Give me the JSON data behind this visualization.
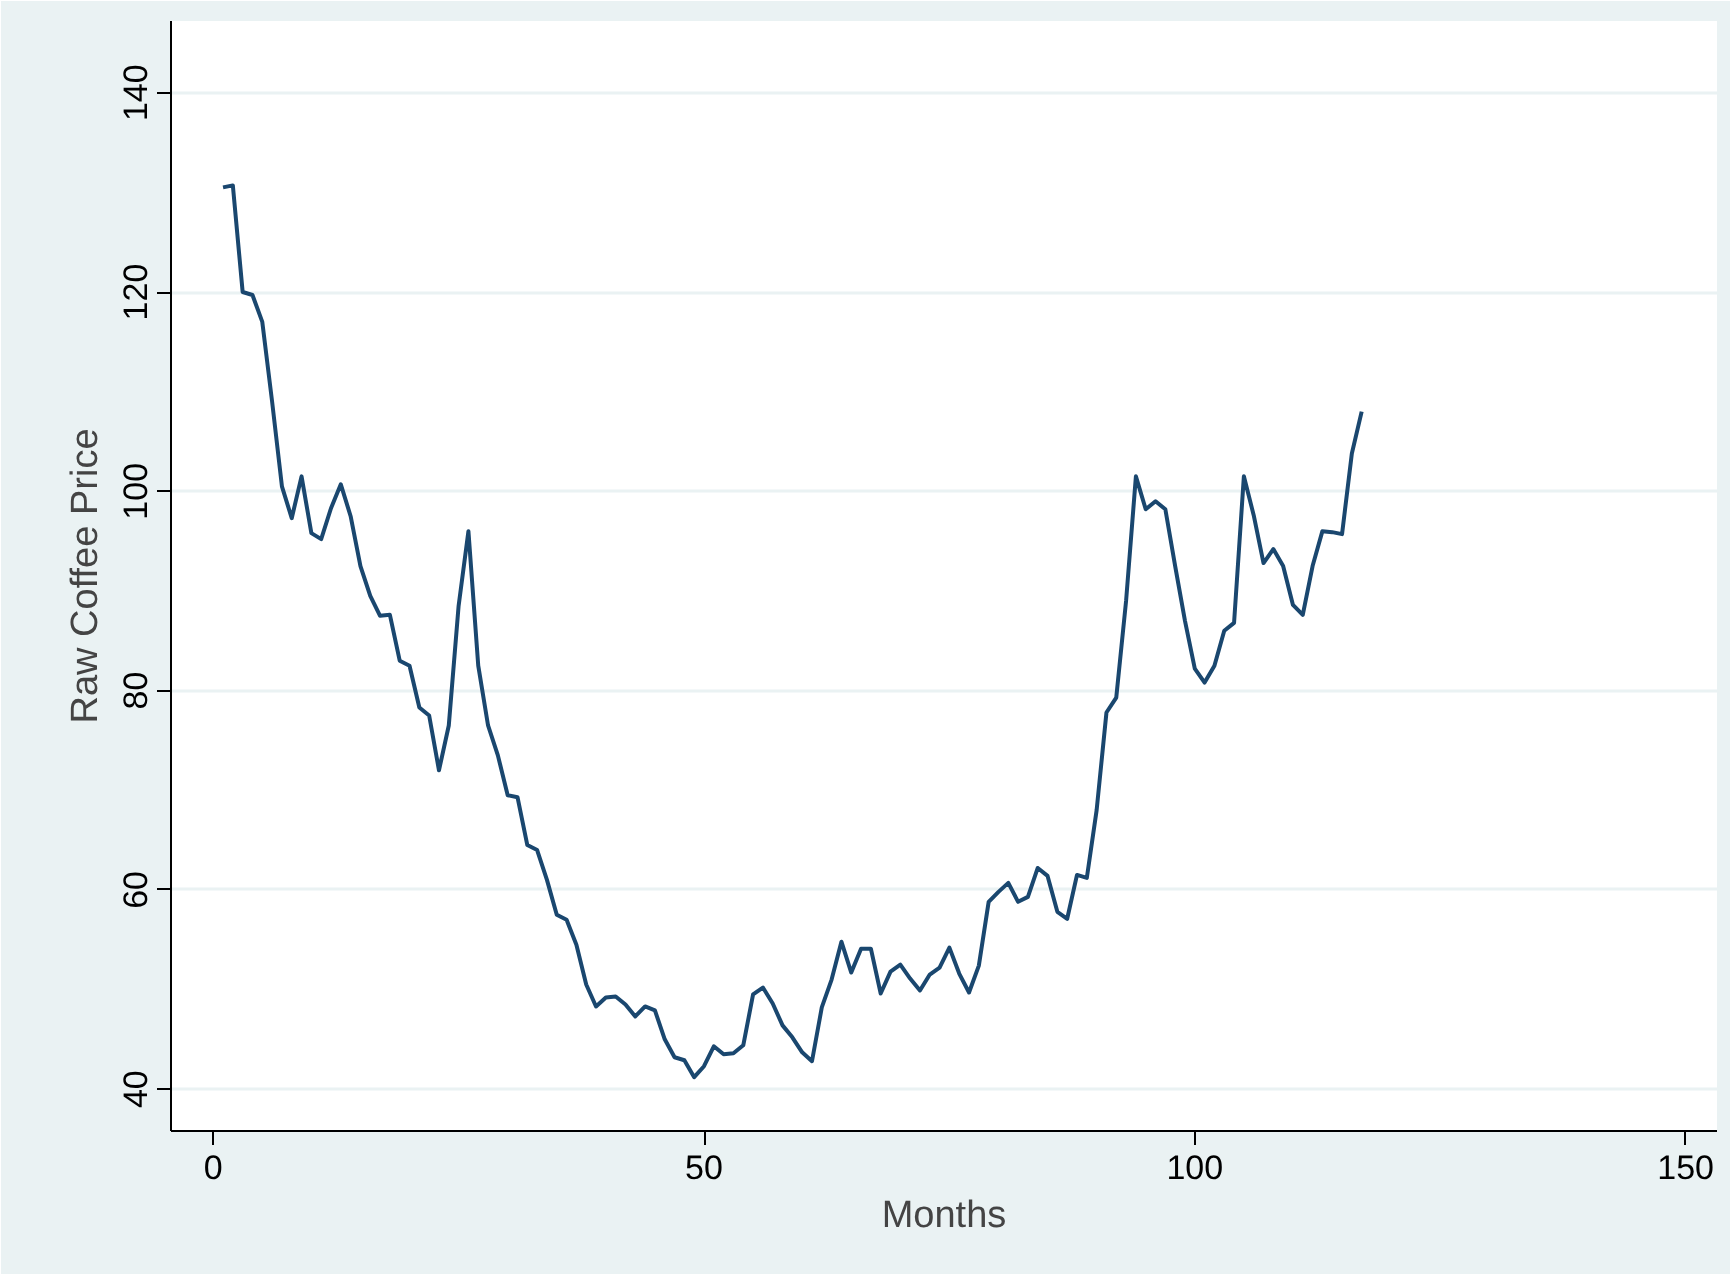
{
  "chart_data": {
    "type": "line",
    "xlabel": "Months",
    "ylabel": "Raw Coffee Price",
    "x": [
      1,
      2,
      3,
      4,
      5,
      6,
      7,
      8,
      9,
      10,
      11,
      12,
      13,
      14,
      15,
      16,
      17,
      18,
      19,
      20,
      21,
      22,
      23,
      24,
      25,
      26,
      27,
      28,
      29,
      30,
      31,
      32,
      33,
      34,
      35,
      36,
      37,
      38,
      39,
      40,
      41,
      42,
      43,
      44,
      45,
      46,
      47,
      48,
      49,
      50,
      51,
      52,
      53,
      54,
      55,
      56,
      57,
      58,
      59,
      60,
      61,
      62,
      63,
      64,
      65,
      66,
      67,
      68,
      69,
      70,
      71,
      72,
      73,
      74,
      75,
      76,
      77,
      78,
      79,
      80,
      81,
      82,
      83,
      84,
      85,
      86,
      87,
      88,
      89,
      90,
      91,
      92,
      93,
      94,
      95,
      96,
      97,
      98,
      99,
      100,
      101,
      102,
      103,
      104,
      105,
      106,
      107,
      108,
      109,
      110,
      111,
      112,
      113,
      114,
      115,
      116,
      117
    ],
    "series": [
      {
        "color": "#1a476f",
        "values": [
          130.5,
          130.7,
          120,
          119.7,
          117,
          109,
          100.5,
          97.3,
          101.5,
          95.8,
          95.2,
          98.3,
          100.7,
          97.5,
          92.5,
          89.5,
          87.5,
          87.6,
          83,
          82.5,
          78.3,
          77.5,
          72,
          76.5,
          88.5,
          96,
          82.5,
          76.5,
          73.5,
          69.5,
          69.3,
          64.5,
          64,
          61,
          57.5,
          57,
          54.5,
          50.5,
          48.3,
          49.2,
          49.3,
          48.5,
          47.3,
          48.3,
          47.9,
          45,
          43.2,
          42.9,
          41.2,
          42.3,
          44.3,
          43.5,
          43.6,
          44.4,
          49.5,
          50.2,
          48.6,
          46.4,
          45.2,
          43.7,
          42.8,
          48.2,
          51,
          54.8,
          51.7,
          54.1,
          54.1,
          49.6,
          51.8,
          52.5,
          51.1,
          49.9,
          51.5,
          52.2,
          54.2,
          51.6,
          49.7,
          52.4,
          58.8,
          59.8,
          60.7,
          58.8,
          59.3,
          62.2,
          61.4,
          57.8,
          57.1,
          61.5,
          61.2,
          68,
          77.8,
          79.3,
          89,
          101.5,
          98.2,
          99,
          98.2,
          92.5,
          87,
          82.2,
          80.8,
          82.5,
          86,
          86.8,
          101.5,
          97.6,
          92.8,
          94.2,
          92.5,
          88.6,
          87.6,
          92.5,
          96,
          95.9,
          95.7,
          103.8,
          108
        ]
      }
    ],
    "xlim": [
      -4.3,
      153.2
    ],
    "ylim": [
      35.8,
      147.2
    ],
    "xticks": [
      0,
      50,
      100,
      150
    ],
    "yticks": [
      40,
      60,
      80,
      100,
      120,
      140
    ],
    "grid": "y",
    "line_style": "solid"
  }
}
